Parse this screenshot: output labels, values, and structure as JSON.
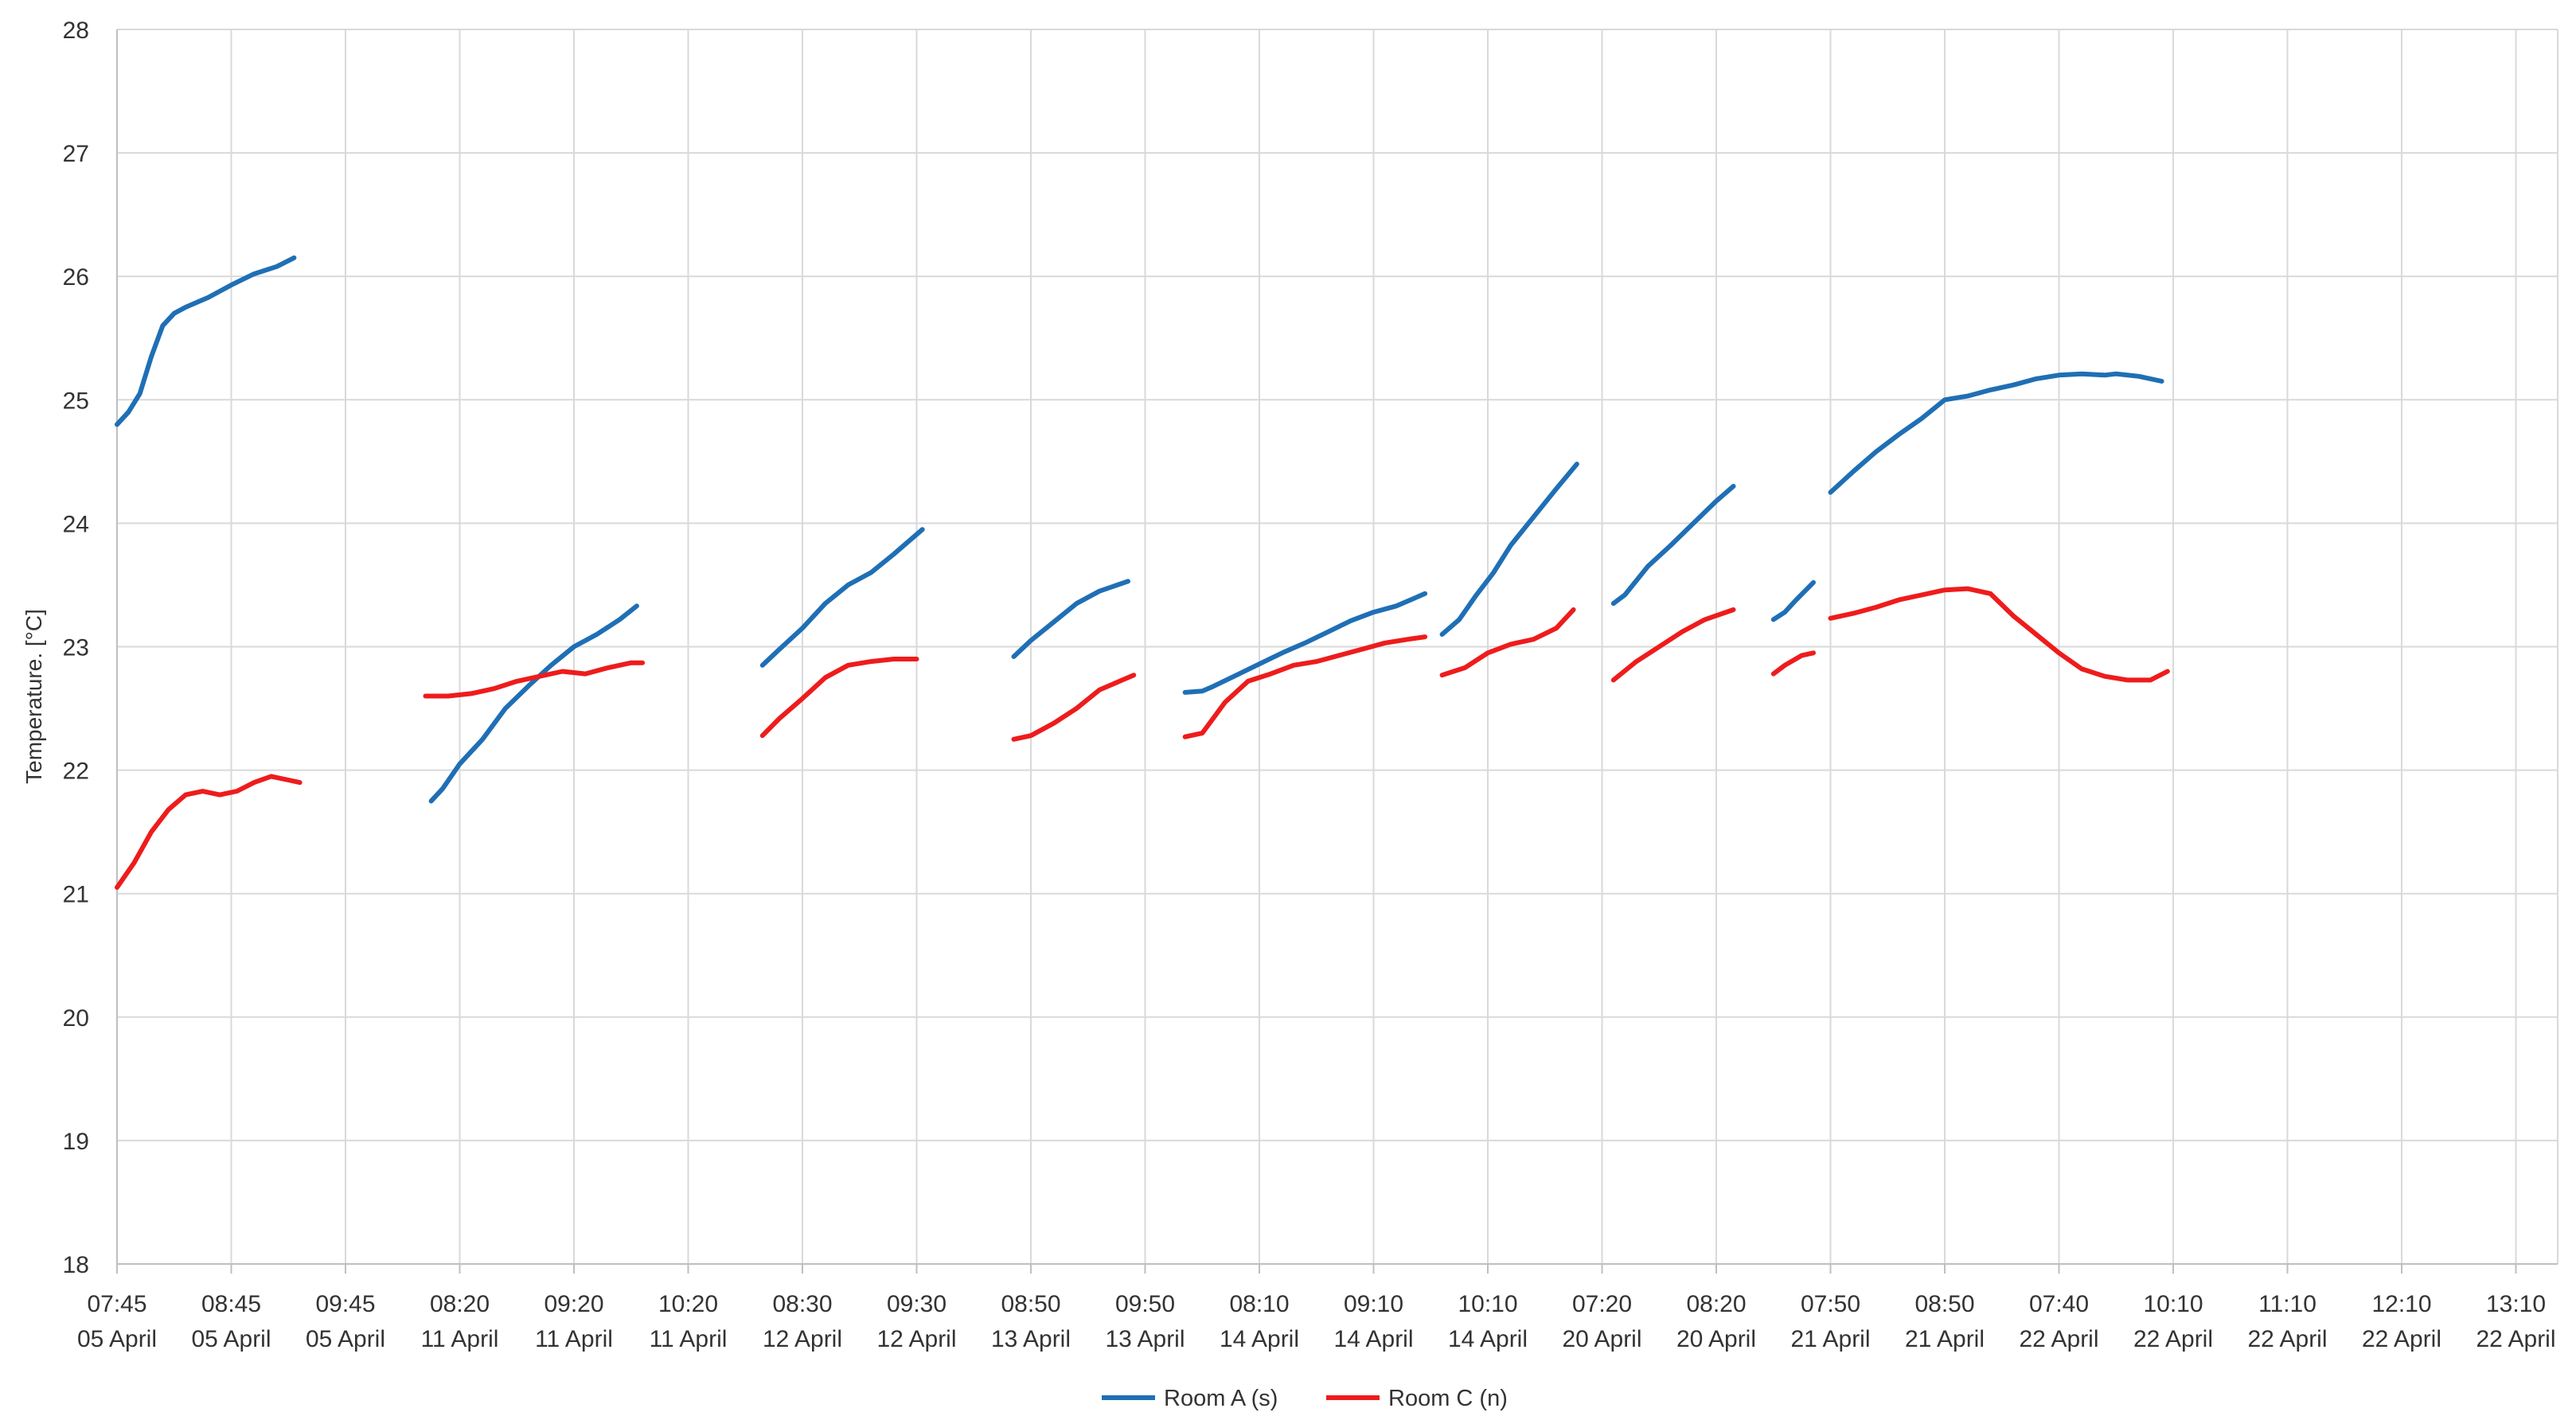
{
  "chart_data": {
    "type": "line",
    "title": "",
    "xlabel": "",
    "ylabel": "Temperature. [°C]",
    "ylim": [
      18,
      28
    ],
    "y_ticks": [
      18,
      19,
      20,
      21,
      22,
      23,
      24,
      25,
      26,
      27,
      28
    ],
    "grid": true,
    "legend_position": "bottom",
    "x_tick_labels": [
      {
        "time": "07:45",
        "date": "05 April"
      },
      {
        "time": "08:45",
        "date": "05 April"
      },
      {
        "time": "09:45",
        "date": "05 April"
      },
      {
        "time": "08:20",
        "date": "11 April"
      },
      {
        "time": "09:20",
        "date": "11 April"
      },
      {
        "time": "10:20",
        "date": "11 April"
      },
      {
        "time": "08:30",
        "date": "12 April"
      },
      {
        "time": "09:30",
        "date": "12 April"
      },
      {
        "time": "08:50",
        "date": "13 April"
      },
      {
        "time": "09:50",
        "date": "13 April"
      },
      {
        "time": "08:10",
        "date": "14 April"
      },
      {
        "time": "09:10",
        "date": "14 April"
      },
      {
        "time": "10:10",
        "date": "14 April"
      },
      {
        "time": "07:20",
        "date": "20 April"
      },
      {
        "time": "08:20",
        "date": "20 April"
      },
      {
        "time": "07:50",
        "date": "21 April"
      },
      {
        "time": "08:50",
        "date": "21 April"
      },
      {
        "time": "07:40",
        "date": "22 April"
      },
      {
        "time": "10:10",
        "date": "22 April"
      },
      {
        "time": "11:10",
        "date": "22 April"
      },
      {
        "time": "12:10",
        "date": "22 April"
      },
      {
        "time": "13:10",
        "date": "22 April"
      }
    ],
    "series": [
      {
        "name": "Room A (s)",
        "color": "#1f6fb5",
        "segments": [
          [
            [
              0,
              24.8
            ],
            [
              0.1,
              24.9
            ],
            [
              0.2,
              25.05
            ],
            [
              0.3,
              25.35
            ],
            [
              0.4,
              25.6
            ],
            [
              0.5,
              25.7
            ],
            [
              0.6,
              25.75
            ],
            [
              0.8,
              25.83
            ],
            [
              1.0,
              25.93
            ],
            [
              1.2,
              26.02
            ],
            [
              1.4,
              26.08
            ],
            [
              1.55,
              26.15
            ]
          ],
          [
            [
              2.75,
              21.75
            ],
            [
              2.85,
              21.85
            ],
            [
              3.0,
              22.05
            ],
            [
              3.2,
              22.25
            ],
            [
              3.4,
              22.5
            ],
            [
              3.6,
              22.68
            ],
            [
              3.8,
              22.85
            ],
            [
              4.0,
              23.0
            ],
            [
              4.2,
              23.1
            ],
            [
              4.4,
              23.22
            ],
            [
              4.55,
              23.33
            ]
          ],
          [
            [
              5.65,
              22.85
            ],
            [
              5.8,
              22.98
            ],
            [
              6.0,
              23.15
            ],
            [
              6.2,
              23.35
            ],
            [
              6.4,
              23.5
            ],
            [
              6.6,
              23.6
            ],
            [
              6.8,
              23.75
            ],
            [
              7.05,
              23.95
            ]
          ],
          [
            [
              7.85,
              22.92
            ],
            [
              8.0,
              23.05
            ],
            [
              8.2,
              23.2
            ],
            [
              8.4,
              23.35
            ],
            [
              8.6,
              23.45
            ],
            [
              8.85,
              23.53
            ]
          ],
          [
            [
              9.35,
              22.63
            ],
            [
              9.5,
              22.64
            ],
            [
              9.6,
              22.68
            ],
            [
              9.8,
              22.77
            ],
            [
              10.0,
              22.86
            ],
            [
              10.2,
              22.95
            ],
            [
              10.4,
              23.03
            ],
            [
              10.6,
              23.12
            ],
            [
              10.8,
              23.21
            ],
            [
              11.0,
              23.28
            ],
            [
              11.2,
              23.33
            ],
            [
              11.45,
              23.43
            ]
          ],
          [
            [
              11.6,
              23.1
            ],
            [
              11.75,
              23.22
            ],
            [
              11.9,
              23.42
            ],
            [
              12.05,
              23.6
            ],
            [
              12.2,
              23.82
            ],
            [
              12.4,
              24.05
            ],
            [
              12.6,
              24.28
            ],
            [
              12.78,
              24.48
            ]
          ],
          [
            [
              13.1,
              23.35
            ],
            [
              13.2,
              23.42
            ],
            [
              13.4,
              23.65
            ],
            [
              13.6,
              23.82
            ],
            [
              13.8,
              24.0
            ],
            [
              14.0,
              24.18
            ],
            [
              14.15,
              24.3
            ]
          ],
          [
            [
              14.5,
              23.22
            ],
            [
              14.6,
              23.28
            ],
            [
              14.7,
              23.38
            ],
            [
              14.85,
              23.52
            ]
          ],
          [
            [
              15.0,
              24.25
            ],
            [
              15.2,
              24.42
            ],
            [
              15.4,
              24.58
            ],
            [
              15.6,
              24.72
            ],
            [
              15.8,
              24.85
            ],
            [
              16.0,
              25.0
            ],
            [
              16.2,
              25.03
            ],
            [
              16.4,
              25.08
            ],
            [
              16.6,
              25.12
            ],
            [
              16.8,
              25.17
            ],
            [
              17.0,
              25.2
            ],
            [
              17.2,
              25.21
            ],
            [
              17.4,
              25.2
            ],
            [
              17.5,
              25.21
            ],
            [
              17.7,
              25.19
            ],
            [
              17.9,
              25.15
            ]
          ]
        ]
      },
      {
        "name": "Room C (n)",
        "color": "#ee1c1c",
        "segments": [
          [
            [
              0,
              21.05
            ],
            [
              0.15,
              21.25
            ],
            [
              0.3,
              21.5
            ],
            [
              0.45,
              21.68
            ],
            [
              0.6,
              21.8
            ],
            [
              0.75,
              21.83
            ],
            [
              0.9,
              21.8
            ],
            [
              1.05,
              21.83
            ],
            [
              1.2,
              21.9
            ],
            [
              1.35,
              21.95
            ],
            [
              1.5,
              21.92
            ],
            [
              1.6,
              21.9
            ]
          ],
          [
            [
              2.7,
              22.6
            ],
            [
              2.9,
              22.6
            ],
            [
              3.1,
              22.62
            ],
            [
              3.3,
              22.66
            ],
            [
              3.5,
              22.72
            ],
            [
              3.7,
              22.76
            ],
            [
              3.9,
              22.8
            ],
            [
              4.1,
              22.78
            ],
            [
              4.3,
              22.83
            ],
            [
              4.5,
              22.87
            ],
            [
              4.6,
              22.87
            ]
          ],
          [
            [
              5.65,
              22.28
            ],
            [
              5.8,
              22.42
            ],
            [
              6.0,
              22.58
            ],
            [
              6.2,
              22.75
            ],
            [
              6.4,
              22.85
            ],
            [
              6.6,
              22.88
            ],
            [
              6.8,
              22.9
            ],
            [
              7.0,
              22.9
            ]
          ],
          [
            [
              7.85,
              22.25
            ],
            [
              8.0,
              22.28
            ],
            [
              8.2,
              22.38
            ],
            [
              8.4,
              22.5
            ],
            [
              8.6,
              22.65
            ],
            [
              8.8,
              22.73
            ],
            [
              8.9,
              22.77
            ]
          ],
          [
            [
              9.35,
              22.27
            ],
            [
              9.5,
              22.3
            ],
            [
              9.7,
              22.55
            ],
            [
              9.9,
              22.72
            ],
            [
              10.1,
              22.78
            ],
            [
              10.3,
              22.85
            ],
            [
              10.5,
              22.88
            ],
            [
              10.7,
              22.93
            ],
            [
              10.9,
              22.98
            ],
            [
              11.1,
              23.03
            ],
            [
              11.3,
              23.06
            ],
            [
              11.45,
              23.08
            ]
          ],
          [
            [
              11.6,
              22.77
            ],
            [
              11.8,
              22.83
            ],
            [
              12.0,
              22.95
            ],
            [
              12.2,
              23.02
            ],
            [
              12.4,
              23.06
            ],
            [
              12.6,
              23.15
            ],
            [
              12.75,
              23.3
            ]
          ],
          [
            [
              13.1,
              22.73
            ],
            [
              13.3,
              22.88
            ],
            [
              13.5,
              23.0
            ],
            [
              13.7,
              23.12
            ],
            [
              13.9,
              23.22
            ],
            [
              14.15,
              23.3
            ]
          ],
          [
            [
              14.5,
              22.78
            ],
            [
              14.6,
              22.85
            ],
            [
              14.75,
              22.93
            ],
            [
              14.85,
              22.95
            ]
          ],
          [
            [
              15.0,
              23.23
            ],
            [
              15.2,
              23.27
            ],
            [
              15.4,
              23.32
            ],
            [
              15.6,
              23.38
            ],
            [
              15.8,
              23.42
            ],
            [
              16.0,
              23.46
            ],
            [
              16.2,
              23.47
            ],
            [
              16.4,
              23.43
            ],
            [
              16.6,
              23.25
            ],
            [
              16.8,
              23.1
            ],
            [
              17.0,
              22.95
            ],
            [
              17.2,
              22.82
            ],
            [
              17.4,
              22.76
            ],
            [
              17.6,
              22.73
            ],
            [
              17.8,
              22.73
            ],
            [
              17.95,
              22.8
            ]
          ]
        ]
      }
    ]
  }
}
